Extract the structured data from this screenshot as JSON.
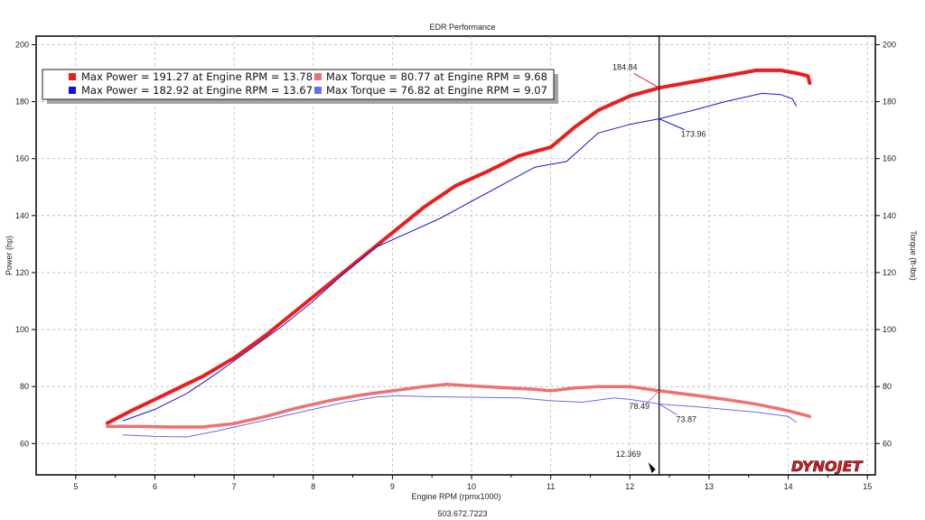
{
  "chart_data": {
    "type": "line",
    "title": "EDR Performance",
    "xlabel": "Engine RPM (rpmx1000)",
    "ylabel_left": "Power (hp)",
    "ylabel_right": "Torque (ft-lbs)",
    "footer": "503.672.7223",
    "brand": "DYNOJET",
    "xlim": [
      4.5,
      15.1
    ],
    "ylim": [
      49,
      203
    ],
    "x_ticks": [
      "5",
      "6",
      "7",
      "8",
      "9",
      "10",
      "11",
      "12",
      "13",
      "14",
      "15"
    ],
    "y_ticks": [
      "60",
      "80",
      "100",
      "120",
      "140",
      "160",
      "180",
      "200"
    ],
    "grid": true,
    "legend_position": "top-left",
    "cursor": {
      "x": 12.369,
      "label": "12.369"
    },
    "legend": [
      {
        "text": "Max Power = 191.27 at Engine RPM = 13.78",
        "color": "#ee1c1c"
      },
      {
        "text": "Max Torque = 80.77 at Engine RPM = 9.68",
        "color": "#f07070"
      },
      {
        "text": "Max Power = 182.92 at Engine RPM = 13.67",
        "color": "#1414d8"
      },
      {
        "text": "Max Torque = 76.82 at Engine RPM = 9.07",
        "color": "#6a6aee"
      }
    ],
    "series": [
      {
        "name": "Max Power = 191.27 at Engine RPM = 13.78",
        "color": "#ee1c1c",
        "width": 4,
        "x": [
          5.4,
          5.7,
          6.0,
          6.3,
          6.6,
          7.0,
          7.4,
          7.8,
          8.2,
          8.6,
          9.0,
          9.4,
          9.8,
          10.2,
          10.6,
          11.0,
          11.3,
          11.6,
          12.0,
          12.37,
          12.8,
          13.2,
          13.6,
          13.9,
          14.1,
          14.25,
          14.27
        ],
        "y": [
          67.2,
          71.5,
          75.5,
          79.5,
          83.5,
          90,
          98,
          107,
          116,
          125,
          134,
          143,
          150.5,
          155.5,
          161,
          164,
          171,
          177,
          182,
          184.84,
          187,
          189,
          191,
          191,
          190,
          189,
          186.5
        ]
      },
      {
        "name": "Max Torque = 80.77 at Engine RPM = 9.68",
        "color": "#f07070",
        "width": 3.5,
        "x": [
          5.4,
          5.8,
          6.2,
          6.6,
          7.0,
          7.4,
          7.8,
          8.2,
          8.6,
          9.0,
          9.4,
          9.68,
          10.0,
          10.4,
          10.8,
          11.0,
          11.3,
          11.6,
          12.0,
          12.37,
          12.8,
          13.2,
          13.6,
          14.0,
          14.27
        ],
        "y": [
          66.0,
          66.0,
          65.8,
          65.8,
          67.0,
          69.5,
          72.5,
          75.0,
          77.0,
          78.5,
          80.0,
          80.77,
          80.2,
          79.6,
          79.0,
          78.5,
          79.5,
          80.0,
          80.0,
          78.49,
          77.0,
          75.5,
          73.8,
          71.5,
          69.5
        ]
      },
      {
        "name": "Max Power = 182.92 at Engine RPM = 13.67",
        "color": "#1414d8",
        "width": 1,
        "x": [
          5.6,
          6.0,
          6.4,
          6.8,
          7.2,
          7.6,
          8.0,
          8.4,
          8.8,
          9.2,
          9.6,
          10.0,
          10.4,
          10.8,
          11.0,
          11.2,
          11.4,
          11.6,
          12.0,
          12.37,
          12.8,
          13.2,
          13.67,
          13.9,
          14.05,
          14.1
        ],
        "y": [
          68,
          72,
          77.5,
          85,
          93,
          101,
          110,
          120,
          129,
          134,
          139,
          145,
          151,
          157,
          158,
          159,
          164,
          169,
          172,
          173.96,
          177,
          180,
          182.92,
          182.5,
          181,
          178.5
        ]
      },
      {
        "name": "Max Torque = 76.82 at Engine RPM = 9.07",
        "color": "#6a6aee",
        "width": 1,
        "x": [
          5.6,
          6.0,
          6.4,
          6.8,
          7.2,
          7.6,
          8.0,
          8.4,
          8.8,
          9.07,
          9.4,
          9.8,
          10.2,
          10.6,
          11.0,
          11.4,
          11.8,
          12.0,
          12.37,
          12.8,
          13.2,
          13.6,
          14.0,
          14.1
        ],
        "y": [
          63.0,
          62.5,
          62.3,
          64.5,
          67.0,
          69.5,
          72.0,
          74.5,
          76.3,
          76.82,
          76.5,
          76.3,
          76.2,
          76.0,
          75.0,
          74.5,
          76.0,
          75.5,
          73.87,
          73.0,
          72.0,
          71.0,
          69.5,
          67.5
        ]
      }
    ],
    "annotations": [
      {
        "text": "184.84",
        "x": 12.37,
        "y": 184.84,
        "color": "#ee1c1c"
      },
      {
        "text": "173.96",
        "x": 12.37,
        "y": 173.96,
        "color": "#1414d8"
      },
      {
        "text": "78.49",
        "x": 12.37,
        "y": 78.49,
        "color": "#f07070"
      },
      {
        "text": "73.87",
        "x": 12.37,
        "y": 73.87,
        "color": "#6a6aee"
      }
    ]
  }
}
